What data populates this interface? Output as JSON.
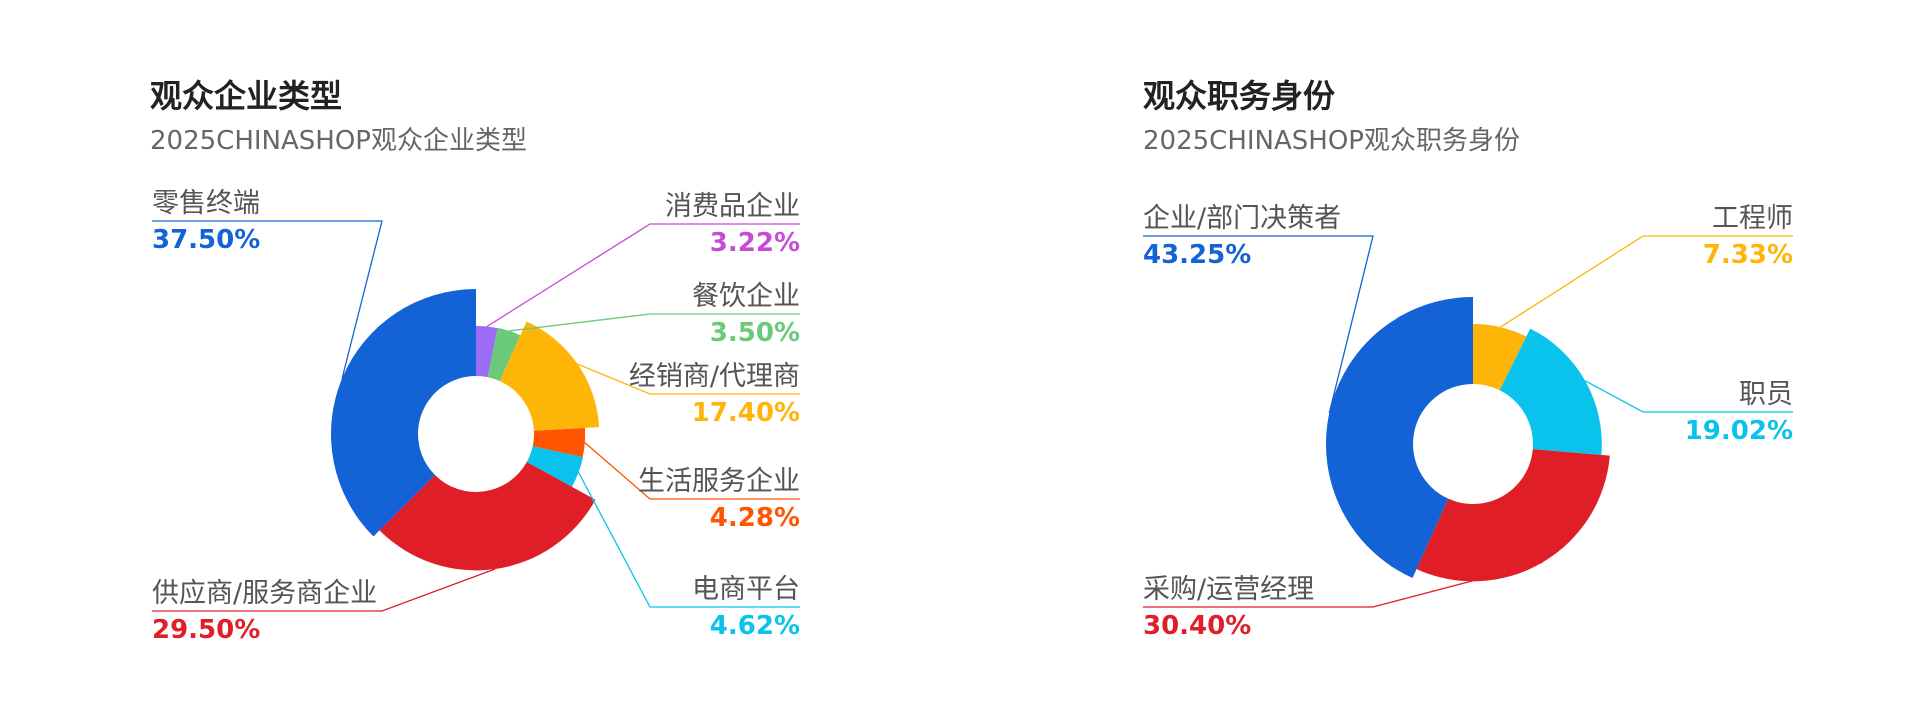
{
  "chart_data": [
    {
      "type": "pie",
      "title": "观众企业类型",
      "subtitle": "2025CHINASHOP观众企业类型",
      "slices": [
        {
          "label": "消费品企业",
          "value": 3.22,
          "display": "3.22%",
          "color": "#9B6CF5",
          "label_color": "#C84BD8"
        },
        {
          "label": "餐饮企业",
          "value": 3.5,
          "display": "3.50%",
          "color": "#6BC97A",
          "label_color": "#6BC97A"
        },
        {
          "label": "经销商/代理商",
          "value": 17.4,
          "display": "17.40%",
          "color": "#FFB508",
          "label_color": "#FFB508"
        },
        {
          "label": "生活服务企业",
          "value": 4.28,
          "display": "4.28%",
          "color": "#FF5500",
          "label_color": "#FF5500"
        },
        {
          "label": "电商平台",
          "value": 4.62,
          "display": "4.62%",
          "color": "#09C3ED",
          "label_color": "#09C3ED"
        },
        {
          "label": "供应商/服务商企业",
          "value": 29.5,
          "display": "29.50%",
          "color": "#E01E27",
          "label_color": "#E01E27"
        },
        {
          "label": "零售终端",
          "value": 37.5,
          "display": "37.50%",
          "color": "#1362D6",
          "label_color": "#1362D6"
        }
      ]
    },
    {
      "type": "pie",
      "title": "观众职务身份",
      "subtitle": "2025CHINASHOP观众职务身份",
      "slices": [
        {
          "label": "工程师",
          "value": 7.33,
          "display": "7.33%",
          "color": "#FFB508",
          "label_color": "#FFB508"
        },
        {
          "label": "职员",
          "value": 19.02,
          "display": "19.02%",
          "color": "#09C3ED",
          "label_color": "#09C3ED"
        },
        {
          "label": "采购/运营经理",
          "value": 30.4,
          "display": "30.40%",
          "color": "#E01E27",
          "label_color": "#E01E27"
        },
        {
          "label": "企业/部门决策者",
          "value": 43.25,
          "display": "43.25%",
          "color": "#1362D6",
          "label_color": "#1362D6"
        }
      ]
    }
  ]
}
